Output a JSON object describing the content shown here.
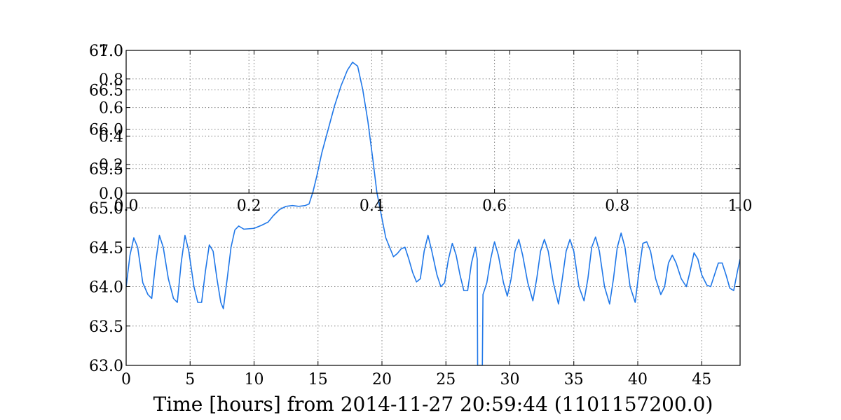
{
  "chart_data": {
    "type": "line",
    "title": "",
    "xlabel": "Time [hours] from 2014-11-27 20:59:44 (1101157200.0)",
    "ylabel": "",
    "xlim": [
      0,
      48
    ],
    "ylim": [
      63.0,
      67.0
    ],
    "x_ticks": [
      "0",
      "5",
      "10",
      "15",
      "20",
      "25",
      "30",
      "35",
      "40",
      "45"
    ],
    "y_ticks": [
      "63.0",
      "63.5",
      "64.0",
      "64.5",
      "65.0",
      "65.5",
      "66.0",
      "66.5",
      "67.0"
    ],
    "grid": true,
    "colors": {
      "line": "#1f77e8",
      "grid": "#808080",
      "axes": "#000000"
    },
    "overlay_axes": {
      "xlim": [
        0,
        1
      ],
      "ylim": [
        0,
        1
      ],
      "x_ticks": [
        "0.0",
        "0.2",
        "0.4",
        "0.6",
        "0.8",
        "1.0"
      ],
      "y_ticks": [
        "0.0",
        "0.2",
        "0.4",
        "0.6",
        "0.8",
        "1.0"
      ]
    },
    "series": [
      {
        "values": [
          [
            0.0,
            64.0
          ],
          [
            0.3,
            64.4
          ],
          [
            0.6,
            64.62
          ],
          [
            0.9,
            64.5
          ],
          [
            1.3,
            64.05
          ],
          [
            1.7,
            63.9
          ],
          [
            2.0,
            63.85
          ],
          [
            2.3,
            64.3
          ],
          [
            2.6,
            64.65
          ],
          [
            2.9,
            64.5
          ],
          [
            3.3,
            64.1
          ],
          [
            3.7,
            63.85
          ],
          [
            4.0,
            63.8
          ],
          [
            4.3,
            64.3
          ],
          [
            4.6,
            64.65
          ],
          [
            4.9,
            64.45
          ],
          [
            5.3,
            64.0
          ],
          [
            5.6,
            63.8
          ],
          [
            5.9,
            63.8
          ],
          [
            6.2,
            64.2
          ],
          [
            6.5,
            64.53
          ],
          [
            6.8,
            64.45
          ],
          [
            7.1,
            64.1
          ],
          [
            7.4,
            63.8
          ],
          [
            7.6,
            63.72
          ],
          [
            7.9,
            64.1
          ],
          [
            8.2,
            64.5
          ],
          [
            8.5,
            64.72
          ],
          [
            8.8,
            64.77
          ],
          [
            9.2,
            64.73
          ],
          [
            10.0,
            64.74
          ],
          [
            10.6,
            64.78
          ],
          [
            11.1,
            64.82
          ],
          [
            11.5,
            64.9
          ],
          [
            12.0,
            64.98
          ],
          [
            12.5,
            65.02
          ],
          [
            13.0,
            65.03
          ],
          [
            13.5,
            65.02
          ],
          [
            14.0,
            65.03
          ],
          [
            14.3,
            65.05
          ],
          [
            14.6,
            65.2
          ],
          [
            14.9,
            65.4
          ],
          [
            15.3,
            65.7
          ],
          [
            15.8,
            66.0
          ],
          [
            16.3,
            66.3
          ],
          [
            16.8,
            66.55
          ],
          [
            17.3,
            66.75
          ],
          [
            17.7,
            66.85
          ],
          [
            18.1,
            66.8
          ],
          [
            18.5,
            66.5
          ],
          [
            18.9,
            66.1
          ],
          [
            19.3,
            65.6
          ],
          [
            19.6,
            65.2
          ],
          [
            19.9,
            64.95
          ],
          [
            20.3,
            64.62
          ],
          [
            20.6,
            64.5
          ],
          [
            20.9,
            64.38
          ],
          [
            21.2,
            64.42
          ],
          [
            21.5,
            64.48
          ],
          [
            21.8,
            64.5
          ],
          [
            22.1,
            64.35
          ],
          [
            22.4,
            64.18
          ],
          [
            22.7,
            64.06
          ],
          [
            23.0,
            64.1
          ],
          [
            23.3,
            64.45
          ],
          [
            23.6,
            64.65
          ],
          [
            23.9,
            64.45
          ],
          [
            24.3,
            64.15
          ],
          [
            24.6,
            64.0
          ],
          [
            24.9,
            64.05
          ],
          [
            25.2,
            64.35
          ],
          [
            25.5,
            64.55
          ],
          [
            25.8,
            64.4
          ],
          [
            26.1,
            64.15
          ],
          [
            26.4,
            63.95
          ],
          [
            26.7,
            63.95
          ],
          [
            27.0,
            64.3
          ],
          [
            27.3,
            64.5
          ],
          [
            27.45,
            64.35
          ],
          [
            27.48,
            63.0
          ],
          [
            27.85,
            63.0
          ],
          [
            27.9,
            63.9
          ],
          [
            28.2,
            64.05
          ],
          [
            28.5,
            64.35
          ],
          [
            28.8,
            64.57
          ],
          [
            29.1,
            64.4
          ],
          [
            29.5,
            64.05
          ],
          [
            29.8,
            63.88
          ],
          [
            30.1,
            64.1
          ],
          [
            30.4,
            64.45
          ],
          [
            30.7,
            64.6
          ],
          [
            31.0,
            64.4
          ],
          [
            31.4,
            64.05
          ],
          [
            31.8,
            63.82
          ],
          [
            32.1,
            64.1
          ],
          [
            32.4,
            64.45
          ],
          [
            32.7,
            64.6
          ],
          [
            33.0,
            64.45
          ],
          [
            33.4,
            64.05
          ],
          [
            33.8,
            63.78
          ],
          [
            34.1,
            64.1
          ],
          [
            34.4,
            64.45
          ],
          [
            34.7,
            64.6
          ],
          [
            35.0,
            64.45
          ],
          [
            35.4,
            64.0
          ],
          [
            35.8,
            63.82
          ],
          [
            36.1,
            64.1
          ],
          [
            36.4,
            64.5
          ],
          [
            36.7,
            64.63
          ],
          [
            37.0,
            64.45
          ],
          [
            37.4,
            64.0
          ],
          [
            37.8,
            63.78
          ],
          [
            38.1,
            64.1
          ],
          [
            38.4,
            64.5
          ],
          [
            38.7,
            64.68
          ],
          [
            39.0,
            64.5
          ],
          [
            39.4,
            64.0
          ],
          [
            39.8,
            63.8
          ],
          [
            40.1,
            64.2
          ],
          [
            40.4,
            64.55
          ],
          [
            40.7,
            64.57
          ],
          [
            41.0,
            64.45
          ],
          [
            41.4,
            64.1
          ],
          [
            41.8,
            63.9
          ],
          [
            42.1,
            64.0
          ],
          [
            42.4,
            64.3
          ],
          [
            42.7,
            64.4
          ],
          [
            43.0,
            64.3
          ],
          [
            43.4,
            64.1
          ],
          [
            43.8,
            64.0
          ],
          [
            44.1,
            64.2
          ],
          [
            44.4,
            64.43
          ],
          [
            44.7,
            64.35
          ],
          [
            45.0,
            64.15
          ],
          [
            45.4,
            64.02
          ],
          [
            45.7,
            64.0
          ],
          [
            46.0,
            64.15
          ],
          [
            46.3,
            64.3
          ],
          [
            46.6,
            64.3
          ],
          [
            46.9,
            64.15
          ],
          [
            47.2,
            63.98
          ],
          [
            47.5,
            63.95
          ],
          [
            47.8,
            64.2
          ],
          [
            48.0,
            64.35
          ]
        ]
      }
    ]
  }
}
